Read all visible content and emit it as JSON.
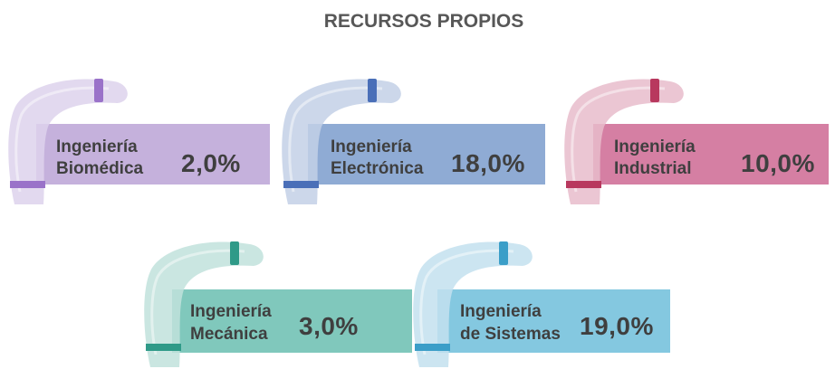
{
  "header": {
    "title": "RECURSOS PROPIOS"
  },
  "items": [
    {
      "label": [
        "Ingeniería",
        "Biomédica"
      ],
      "value": "2,0%"
    },
    {
      "label": [
        "Ingeniería",
        "Electrónica"
      ],
      "value": "18,0%"
    },
    {
      "label": [
        "Ingeniería",
        "Industrial"
      ],
      "value": "10,0%"
    },
    {
      "label": [
        "Ingeniería",
        "Mecánica"
      ],
      "value": "3,0%"
    },
    {
      "label": [
        "Ingeniería",
        "de Sistemas"
      ],
      "value": "19,0%"
    }
  ]
}
